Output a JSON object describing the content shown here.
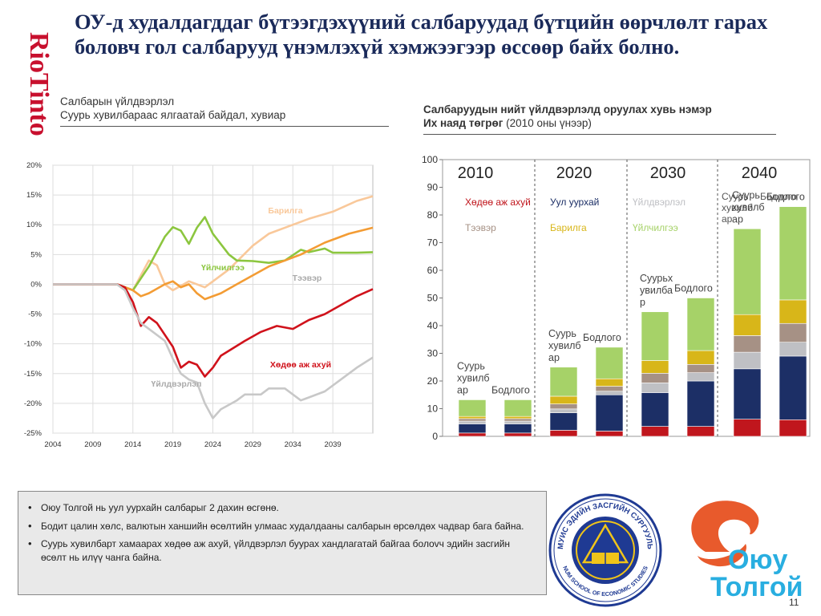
{
  "brand": {
    "name": "RioTinto",
    "color": "#c8102e"
  },
  "title": "ОУ-д худалдагддаг бүтээгдэхүүний салбаруудад бүтцийн өөрчлөлт гарах боловч гол салбарууд үнэмлэхүй хэмжээгээр өссөөр байх болно.",
  "left_panel": {
    "heading": "Салбарын үйлдвэрлэл",
    "subheading": "Суурь хувилбараас ялгаатай  байдал, хувиар"
  },
  "right_panel": {
    "heading": "Салбаруудын нийт үйлдвэрлэлд оруулах хувь нэмэр",
    "subheading_bold": "Их наяд төгрөг",
    "subheading_rest": " (2010 оны үнээр)"
  },
  "chart_data": [
    {
      "type": "line",
      "ylim": [
        -25,
        20
      ],
      "yticks": [
        20,
        15,
        10,
        5,
        0,
        -5,
        -10,
        -15,
        -20,
        -25
      ],
      "ytick_suffix": "%",
      "xlim": [
        2004,
        2044
      ],
      "xticks": [
        2004,
        2009,
        2014,
        2019,
        2024,
        2029,
        2034,
        2039
      ],
      "grid": true,
      "series": [
        {
          "name": "Барилга",
          "color": "#f9c89a",
          "points": [
            [
              2004,
              0
            ],
            [
              2012,
              0
            ],
            [
              2014,
              -1
            ],
            [
              2016,
              4
            ],
            [
              2017,
              3.2
            ],
            [
              2018,
              0
            ],
            [
              2019,
              -1
            ],
            [
              2021,
              0.5
            ],
            [
              2023,
              -0.5
            ],
            [
              2026,
              2.5
            ],
            [
              2029,
              6.5
            ],
            [
              2031,
              8.5
            ],
            [
              2034,
              10
            ],
            [
              2036,
              11
            ],
            [
              2039,
              12.2
            ],
            [
              2042,
              14
            ],
            [
              2044,
              14.8
            ]
          ]
        },
        {
          "name": "Үйлчилгээ",
          "color": "#8cc63f",
          "points": [
            [
              2004,
              0
            ],
            [
              2012,
              0
            ],
            [
              2014,
              -1
            ],
            [
              2016,
              3
            ],
            [
              2018,
              8
            ],
            [
              2019,
              9.6
            ],
            [
              2020,
              9
            ],
            [
              2021,
              6.8
            ],
            [
              2022,
              9.5
            ],
            [
              2023,
              11.3
            ],
            [
              2024,
              8.5
            ],
            [
              2026,
              5
            ],
            [
              2027,
              4
            ],
            [
              2029,
              3.9
            ],
            [
              2031,
              3.6
            ],
            [
              2033,
              4
            ],
            [
              2035,
              5.8
            ],
            [
              2036,
              5.4
            ],
            [
              2038,
              6
            ],
            [
              2039,
              5.3
            ],
            [
              2042,
              5.3
            ],
            [
              2044,
              5.4
            ]
          ]
        },
        {
          "name": "Тээвэр",
          "color": "#f39c34",
          "points": [
            [
              2004,
              0
            ],
            [
              2012,
              0
            ],
            [
              2014,
              -1
            ],
            [
              2015,
              -2
            ],
            [
              2016,
              -1.5
            ],
            [
              2018,
              0
            ],
            [
              2019,
              0.5
            ],
            [
              2020,
              -0.5
            ],
            [
              2021,
              0
            ],
            [
              2022,
              -1.5
            ],
            [
              2023,
              -2.5
            ],
            [
              2025,
              -1.5
            ],
            [
              2027,
              0
            ],
            [
              2029,
              1.5
            ],
            [
              2031,
              3
            ],
            [
              2033,
              4
            ],
            [
              2035,
              5
            ],
            [
              2038,
              7
            ],
            [
              2041,
              8.5
            ],
            [
              2044,
              9.5
            ]
          ]
        },
        {
          "name": "Хөдөө аж ахуй",
          "color": "#d0121b",
          "points": [
            [
              2004,
              0
            ],
            [
              2012,
              0
            ],
            [
              2013,
              -0.5
            ],
            [
              2014,
              -3
            ],
            [
              2015,
              -7
            ],
            [
              2016,
              -5.5
            ],
            [
              2017,
              -6.5
            ],
            [
              2019,
              -10.5
            ],
            [
              2020,
              -14
            ],
            [
              2021,
              -13
            ],
            [
              2022,
              -13.5
            ],
            [
              2023,
              -15.5
            ],
            [
              2024,
              -14
            ],
            [
              2025,
              -12
            ],
            [
              2028,
              -9.5
            ],
            [
              2030,
              -8
            ],
            [
              2032,
              -7
            ],
            [
              2034,
              -7.5
            ],
            [
              2036,
              -6
            ],
            [
              2038,
              -5
            ],
            [
              2040,
              -3.5
            ],
            [
              2042,
              -2
            ],
            [
              2044,
              -0.8
            ]
          ]
        },
        {
          "name": "Үйлдвэрлэл",
          "color": "#c8c8c8",
          "points": [
            [
              2004,
              0
            ],
            [
              2012,
              0
            ],
            [
              2013,
              -1
            ],
            [
              2014,
              -4
            ],
            [
              2015,
              -6.5
            ],
            [
              2016,
              -7.5
            ],
            [
              2018,
              -9.5
            ],
            [
              2019,
              -12.5
            ],
            [
              2020,
              -15
            ],
            [
              2021,
              -16
            ],
            [
              2022,
              -16.5
            ],
            [
              2023,
              -20
            ],
            [
              2024,
              -22.5
            ],
            [
              2025,
              -21
            ],
            [
              2027,
              -19.5
            ],
            [
              2028,
              -18.5
            ],
            [
              2030,
              -18.5
            ],
            [
              2031,
              -17.5
            ],
            [
              2033,
              -17.5
            ],
            [
              2035,
              -19.5
            ],
            [
              2036,
              -19
            ],
            [
              2038,
              -18
            ],
            [
              2040,
              -16
            ],
            [
              2042,
              -14
            ],
            [
              2044,
              -12.3
            ]
          ]
        }
      ],
      "annotations": [
        {
          "text": "Барилга",
          "color": "#f9c89a"
        },
        {
          "text": "Үйлчилгээ",
          "color": "#8cc63f"
        },
        {
          "text": "Тээвэр",
          "color": "#aaaaaa"
        },
        {
          "text": "Хөдөө аж ахуй",
          "color": "#d0121b"
        },
        {
          "text": "Үйлдвэрлэл",
          "color": "#aaaaaa"
        }
      ]
    },
    {
      "type": "bar",
      "stacked": true,
      "ylim": [
        0,
        100
      ],
      "yticks": [
        0,
        10,
        20,
        30,
        40,
        50,
        60,
        70,
        80,
        90,
        100
      ],
      "grid": false,
      "periods": [
        "2010",
        "2020",
        "2030",
        "2040"
      ],
      "legend": [
        {
          "name": "Хөдөө аж ахуй",
          "color": "#c0161d"
        },
        {
          "name": "Уул уурхай",
          "color": "#1c2f66"
        },
        {
          "name": "Үйлдвэрлэл",
          "color": "#bfc0c4"
        },
        {
          "name": "Суурь хувилбар",
          "color": "#555555"
        },
        {
          "name": "Бодлого",
          "color": "#555555"
        },
        {
          "name": "Тээвэр",
          "color": "#a69185"
        },
        {
          "name": "Барилга",
          "color": "#d8b619"
        },
        {
          "name": "Үйлчилгээ",
          "color": "#a6d268"
        }
      ],
      "segment_colors": [
        "#c0161d",
        "#1c2f66",
        "#bfc0c4",
        "#a69185",
        "#d8b619",
        "#a6d268"
      ],
      "bars": [
        {
          "period": "2010",
          "label": "Суурь\nхувилб\nар",
          "segments": [
            1.2,
            3.3,
            1.0,
            0.9,
            0.8,
            6.0
          ]
        },
        {
          "period": "2010",
          "label": "Бодлого",
          "segments": [
            1.2,
            3.3,
            1.0,
            0.9,
            0.8,
            6.0
          ]
        },
        {
          "period": "2020",
          "label": "Суурь\nхувилб\nар",
          "segments": [
            2.2,
            6.3,
            1.4,
            1.8,
            2.8,
            10.5
          ]
        },
        {
          "period": "2020",
          "label": "Бодлого",
          "segments": [
            1.9,
            13.1,
            1.3,
            1.8,
            2.7,
            11.4
          ]
        },
        {
          "period": "2030",
          "label": "Суурьх\nувилба\nр",
          "segments": [
            3.6,
            12.2,
            3.5,
            3.5,
            4.6,
            17.6
          ]
        },
        {
          "period": "2030",
          "label": "Бодлого",
          "segments": [
            3.6,
            16.4,
            3.0,
            3.0,
            5.0,
            19.0
          ]
        },
        {
          "period": "2040",
          "label": "Суурь\nхувилб\nар",
          "segments": [
            6.2,
            18.2,
            6.0,
            6.0,
            7.6,
            31.0
          ]
        },
        {
          "period": "2040",
          "label": "Бодлого",
          "segments": [
            6.0,
            23.0,
            5.0,
            6.8,
            8.5,
            33.7
          ]
        }
      ]
    }
  ],
  "bullets": [
    "Оюу Толгой нь уул уурхайн салбарыг 2 дахин өсгөнө.",
    "Бодит цалин хөлс, валютын ханшийн өсөлтийн улмаас худалдааны салбарын өрсөлдөх чадвар бага байна.",
    "Суурь хувилбарт хамаарах хөдөө аж ахуй, үйлдвэрлэл буурах хандлагатай байгаа болovч эдийн засгийн өсөлт нь илүү чанга байна."
  ],
  "seal": {
    "top_text": "МУИС ЭДИЙН ЗАСГИЙН СУРГУУЛЬ",
    "bottom_text": "NUM SCHOOL OF ECONOMIC STUDIES",
    "colors": [
      "#1f3a93",
      "#f0c419"
    ]
  },
  "oyu_logo": {
    "line1": "Оюу",
    "line2": "Толгой",
    "color": "#29aee0",
    "mark_color": "#e85a2c"
  },
  "page_number": "11"
}
